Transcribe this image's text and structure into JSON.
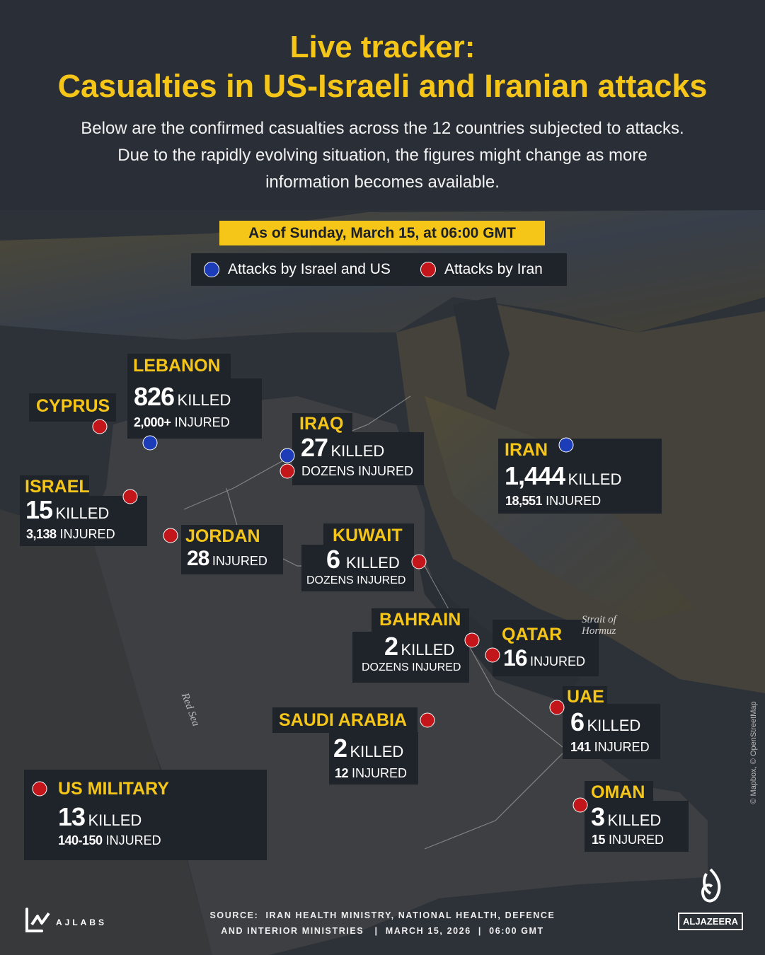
{
  "header": {
    "title_line1": "Live tracker:",
    "title_line2": "Casualties in US-Israeli and Iranian attacks",
    "subtitle_lines": [
      "Below are the confirmed casualties across the 12 countries subjected to attacks.",
      "Due to the rapidly evolving situation, the figures might change as more",
      "information becomes available."
    ]
  },
  "banner": "As of Sunday, March 15, at 06:00 GMT",
  "legend": {
    "blue_label": "Attacks by Israel and US",
    "red_label": "Attacks by Iran",
    "colors": {
      "blue": "#1d3db8",
      "red": "#c3161b",
      "accent": "#f5c518"
    }
  },
  "countries": {
    "lebanon": {
      "name": "LEBANON",
      "killed": "826",
      "killed_label": "KILLED",
      "injured": "2,000+",
      "injured_label": "INJURED",
      "attacks": [
        "blue"
      ]
    },
    "cyprus": {
      "name": "CYPRUS",
      "attacks": [
        "red"
      ]
    },
    "iraq": {
      "name": "IRAQ",
      "killed": "27",
      "killed_label": "KILLED",
      "injured_text": "DOZENS INJURED",
      "attacks": [
        "blue",
        "red"
      ]
    },
    "iran": {
      "name": "IRAN",
      "killed": "1,444",
      "killed_label": "KILLED",
      "injured": "18,551",
      "injured_label": "INJURED",
      "attacks": [
        "blue"
      ]
    },
    "israel": {
      "name": "ISRAEL",
      "killed": "15",
      "killed_label": "KILLED",
      "injured": "3,138",
      "injured_label": "INJURED",
      "attacks": [
        "red"
      ]
    },
    "jordan": {
      "name": "JORDAN",
      "injured": "28",
      "injured_label": "INJURED",
      "attacks": [
        "red"
      ]
    },
    "kuwait": {
      "name": "KUWAIT",
      "killed": "6",
      "killed_label": "KILLED",
      "injured_text": "DOZENS INJURED",
      "attacks": [
        "red"
      ]
    },
    "bahrain": {
      "name": "BAHRAIN",
      "killed": "2",
      "killed_label": "KILLED",
      "injured_text": "DOZENS INJURED",
      "attacks": [
        "red"
      ]
    },
    "qatar": {
      "name": "QATAR",
      "injured": "16",
      "injured_label": "INJURED",
      "attacks": [
        "red"
      ]
    },
    "uae": {
      "name": "UAE",
      "killed": "6",
      "killed_label": "KILLED",
      "injured": "141",
      "injured_label": "INJURED",
      "attacks": [
        "red"
      ]
    },
    "saudi": {
      "name": "SAUDI ARABIA",
      "killed": "2",
      "killed_label": "KILLED",
      "injured": "12",
      "injured_label": "INJURED",
      "attacks": [
        "red"
      ]
    },
    "us_military": {
      "name": "US MILITARY",
      "killed": "13",
      "killed_label": "KILLED",
      "injured": "140-150",
      "injured_label": "INJURED",
      "attacks": [
        "red"
      ]
    },
    "oman": {
      "name": "OMAN",
      "killed": "3",
      "killed_label": "KILLED",
      "injured": "15",
      "injured_label": "INJURED",
      "attacks": [
        "red"
      ]
    }
  },
  "map_labels": {
    "strait_line1": "Strait of",
    "strait_line2": "Hormuz",
    "red_sea": "Red Sea",
    "credit": "© Mapbox, © OpenStreetMap"
  },
  "footer": {
    "source_line1": "SOURCE:  IRAN HEALTH MINISTRY, NATIONAL HEALTH, DEFENCE",
    "source_line2": "AND INTERIOR MINISTRIES   |  MARCH 15, 2026  |  06:00 GMT",
    "ajlabs": "AJLABS",
    "aljazeera": "ALJAZEERA"
  }
}
